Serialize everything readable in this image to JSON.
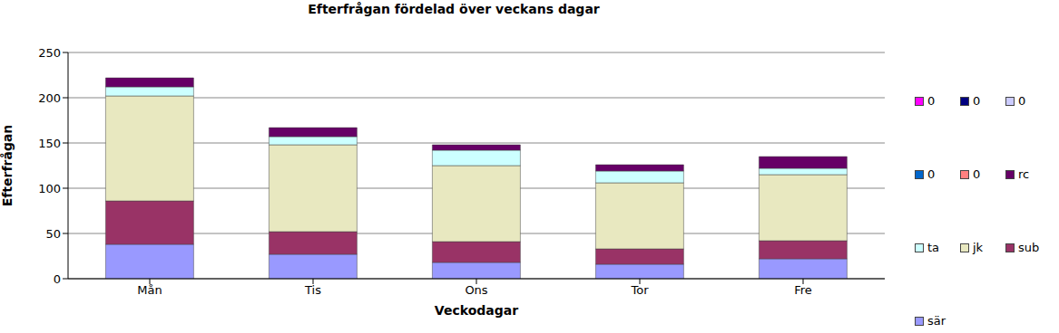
{
  "chart_data": {
    "type": "bar",
    "title": "Efterfrågan fördelad över veckans dagar",
    "x_label": "Veckodagar",
    "y_label": "Efterfrågan",
    "categories": [
      "Mån",
      "Tis",
      "Ons",
      "Tor",
      "Fre"
    ],
    "stacked": true,
    "grid": true,
    "legend": "right",
    "ylim": [
      0,
      250
    ],
    "yticks": [
      0,
      50,
      100,
      150,
      200,
      250
    ],
    "series": [
      {
        "name": "sär",
        "color": "#9999ff",
        "values": [
          38,
          27,
          18,
          16,
          22
        ]
      },
      {
        "name": "sub",
        "color": "#993366",
        "values": [
          48,
          25,
          23,
          17,
          20
        ]
      },
      {
        "name": "jk",
        "color": "#e8e8c0",
        "values": [
          116,
          96,
          84,
          73,
          73
        ]
      },
      {
        "name": "ta",
        "color": "#ccffff",
        "values": [
          10,
          9,
          17,
          13,
          7
        ]
      },
      {
        "name": "rc",
        "color": "#660066",
        "values": [
          10,
          10,
          6,
          7,
          13
        ]
      },
      {
        "name": "0",
        "color": "#ff8080",
        "values": [
          0,
          0,
          0,
          0,
          0
        ]
      },
      {
        "name": "0",
        "color": "#0066cc",
        "values": [
          0,
          0,
          0,
          0,
          0
        ]
      },
      {
        "name": "0",
        "color": "#ccccff",
        "values": [
          0,
          0,
          0,
          0,
          0
        ]
      },
      {
        "name": "0",
        "color": "#000080",
        "values": [
          0,
          0,
          0,
          0,
          0
        ]
      },
      {
        "name": "0",
        "color": "#ff00ff",
        "values": [
          0,
          0,
          0,
          0,
          0
        ]
      }
    ]
  }
}
